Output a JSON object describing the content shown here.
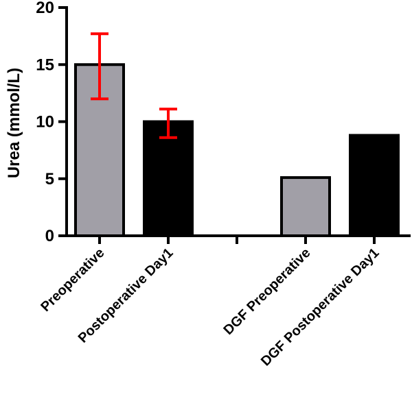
{
  "chart_data": {
    "type": "bar",
    "title": "",
    "xlabel": "",
    "ylabel": "Urea (mmol/L)",
    "ylim": [
      0,
      20
    ],
    "yticks": [
      0,
      5,
      10,
      15,
      20
    ],
    "grid": false,
    "categories": [
      "Preoperative",
      "Postoperative Day1",
      "",
      "DGF Preoperative",
      "DGF Postoperative Day1"
    ],
    "values": [
      15.0,
      10.0,
      null,
      5.1,
      8.8
    ],
    "error_bars": [
      {
        "lower": 12.0,
        "upper": 17.7
      },
      {
        "lower": 8.6,
        "upper": 11.1
      },
      null,
      null,
      null
    ],
    "bar_colors": [
      "#a19fa7",
      "#000000",
      null,
      "#a19fa7",
      "#000000"
    ],
    "error_bar_color": "#ff0000"
  }
}
